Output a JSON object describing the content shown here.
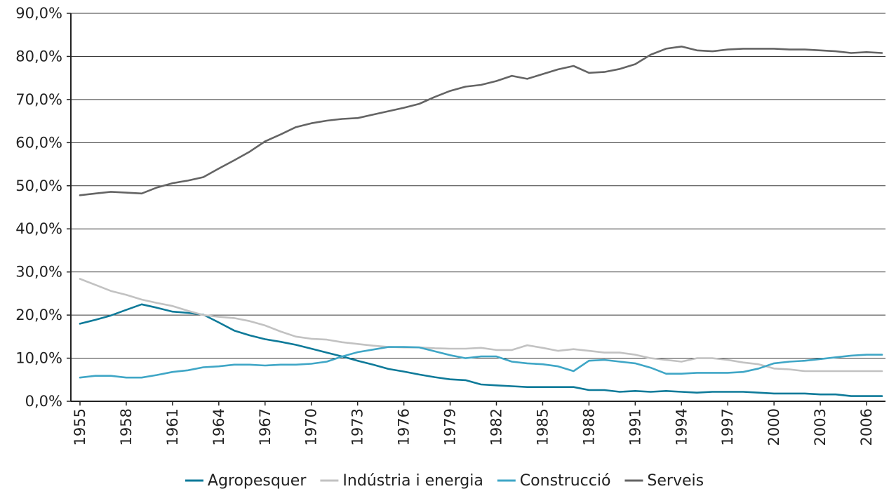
{
  "chart_data": {
    "type": "line",
    "y_ticks": [
      "0,0%",
      "10,0%",
      "20,0%",
      "30,0%",
      "40,0%",
      "50,0%",
      "60,0%",
      "70,0%",
      "80,0%",
      "90,0%"
    ],
    "ylim": [
      0,
      90
    ],
    "x_labels": [
      "1955",
      "1958",
      "1961",
      "1964",
      "1967",
      "1970",
      "1973",
      "1976",
      "1979",
      "1982",
      "1985",
      "1988",
      "1991",
      "1994",
      "1997",
      "2000",
      "2003",
      "2006"
    ],
    "x_years": [
      1955,
      1956,
      1957,
      1958,
      1959,
      1960,
      1961,
      1962,
      1963,
      1964,
      1965,
      1966,
      1967,
      1968,
      1969,
      1970,
      1971,
      1972,
      1973,
      1974,
      1975,
      1976,
      1977,
      1978,
      1979,
      1980,
      1981,
      1982,
      1983,
      1984,
      1985,
      1986,
      1987,
      1988,
      1989,
      1990,
      1991,
      1992,
      1993,
      1994,
      1995,
      1996,
      1997,
      1998,
      1999,
      2000,
      2001,
      2002,
      2003,
      2004,
      2005,
      2006,
      2007
    ],
    "grid": true,
    "legend_position": "bottom",
    "series": [
      {
        "name": "Agropesquer",
        "color": "#0e7a99",
        "values": [
          18.0,
          18.9,
          19.9,
          21.2,
          22.5,
          21.7,
          20.8,
          20.5,
          20.1,
          18.3,
          16.4,
          15.3,
          14.4,
          13.8,
          13.1,
          12.2,
          11.3,
          10.4,
          9.4,
          8.5,
          7.5,
          6.9,
          6.2,
          5.6,
          5.1,
          4.9,
          3.9,
          3.7,
          3.5,
          3.3,
          3.3,
          3.3,
          3.3,
          2.6,
          2.6,
          2.2,
          2.4,
          2.2,
          2.4,
          2.2,
          2.0,
          2.2,
          2.2,
          2.2,
          2.0,
          1.8,
          1.8,
          1.8,
          1.6,
          1.6,
          1.2,
          1.2,
          1.2
        ]
      },
      {
        "name": "Indústria i energia",
        "color": "#c2c2c2",
        "values": [
          28.4,
          27.0,
          25.6,
          24.7,
          23.6,
          22.8,
          22.1,
          21.0,
          20.0,
          19.6,
          19.3,
          18.6,
          17.6,
          16.2,
          15.0,
          14.5,
          14.3,
          13.7,
          13.3,
          12.9,
          12.6,
          12.5,
          12.5,
          12.3,
          12.2,
          12.2,
          12.4,
          11.9,
          11.9,
          13.0,
          12.4,
          11.7,
          12.1,
          11.7,
          11.3,
          11.3,
          10.8,
          10.0,
          9.6,
          9.2,
          10.0,
          10.0,
          9.6,
          9.0,
          8.6,
          7.6,
          7.4,
          7.0,
          7.0,
          7.0,
          7.0,
          7.0,
          7.0
        ]
      },
      {
        "name": "Construcció",
        "color": "#3fa6c6",
        "values": [
          5.5,
          5.9,
          5.9,
          5.5,
          5.5,
          6.1,
          6.8,
          7.2,
          7.9,
          8.1,
          8.5,
          8.5,
          8.3,
          8.5,
          8.5,
          8.7,
          9.2,
          10.4,
          11.4,
          12.0,
          12.6,
          12.6,
          12.5,
          11.6,
          10.7,
          10.0,
          10.4,
          10.4,
          9.2,
          8.8,
          8.6,
          8.1,
          7.0,
          9.4,
          9.6,
          9.2,
          8.8,
          7.8,
          6.4,
          6.4,
          6.6,
          6.6,
          6.6,
          6.8,
          7.6,
          8.8,
          9.2,
          9.4,
          9.8,
          10.2,
          10.6,
          10.8,
          10.8
        ]
      },
      {
        "name": "Serveis",
        "color": "#646464",
        "values": [
          47.8,
          48.2,
          48.6,
          48.4,
          48.2,
          49.6,
          50.6,
          51.2,
          52.0,
          54.0,
          55.9,
          57.9,
          60.3,
          61.9,
          63.6,
          64.5,
          65.1,
          65.5,
          65.7,
          66.5,
          67.3,
          68.1,
          69.0,
          70.6,
          72.0,
          73.0,
          73.4,
          74.3,
          75.5,
          74.8,
          75.9,
          77.0,
          77.8,
          76.2,
          76.4,
          77.1,
          78.2,
          80.4,
          81.8,
          82.3,
          81.4,
          81.2,
          81.6,
          81.8,
          81.8,
          81.8,
          81.6,
          81.6,
          81.4,
          81.2,
          80.8,
          81.0,
          80.8
        ]
      }
    ]
  }
}
